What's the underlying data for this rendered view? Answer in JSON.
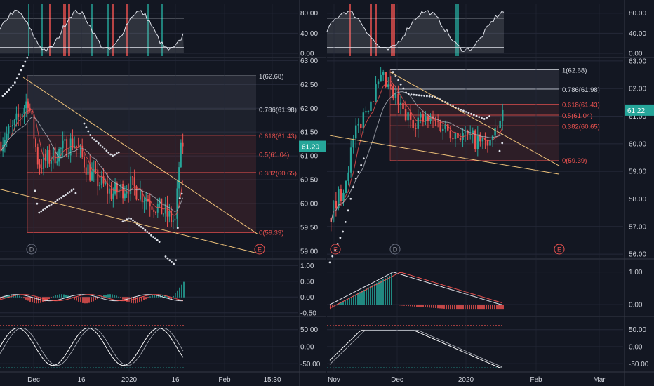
{
  "colors": {
    "background": "#131722",
    "grid": "#242838",
    "text": "#d1d4dc",
    "up": "#26a69a",
    "down": "#ef5350",
    "fib_neutral": "#d1d4dc",
    "fib_red": "#ef5350",
    "trendline": "#f0c37a",
    "price_badge": "#26a69a",
    "marker": "#ef5350",
    "marker_d": "#4a5060"
  },
  "chart_data": [
    {
      "type": "candlestick",
      "panel": "left",
      "price_axis": {
        "ticks": [
          "63.00",
          "62.50",
          "62.00",
          "61.50",
          "61.00",
          "60.50",
          "60.00",
          "59.50",
          "59.00"
        ],
        "ylim": [
          58.85,
          63.05
        ]
      },
      "time_axis": [
        "Dec",
        "16",
        "2020",
        "16",
        "Feb",
        "15:30"
      ],
      "last_price": "61.20",
      "fib_levels": [
        {
          "label": "1(62.68)",
          "value": 62.68,
          "color": "neutral"
        },
        {
          "label": "0.786(61.98)",
          "value": 61.98,
          "color": "neutral"
        },
        {
          "label": "0.618(61.43)",
          "value": 61.43,
          "color": "red"
        },
        {
          "label": "0.5(61.04)",
          "value": 61.04,
          "color": "red"
        },
        {
          "label": "0.382(60.65)",
          "value": 60.65,
          "color": "red"
        },
        {
          "label": "0(59.39)",
          "value": 59.39,
          "color": "red"
        }
      ],
      "markers": [
        "D",
        "E"
      ],
      "indicators": {
        "top_oscillator_ticks": [
          "80.00",
          "40.00",
          "0.00"
        ],
        "macd_ticks": [
          "1.00",
          "0.50",
          "0.00",
          "-0.50"
        ],
        "stoch_ticks": [
          "50.00",
          "0.00",
          "-50.00"
        ]
      }
    },
    {
      "type": "candlestick",
      "panel": "right",
      "price_axis": {
        "ticks": [
          "63.00",
          "62.00",
          "61.00",
          "60.00",
          "59.00",
          "58.00",
          "57.00",
          "56.00"
        ],
        "ylim": [
          55.85,
          63.1
        ]
      },
      "time_axis": [
        "Nov",
        "Dec",
        "2020",
        "Feb",
        "Mar"
      ],
      "last_price": "61.22",
      "fib_levels": [
        {
          "label": "1(62.68)",
          "value": 62.68,
          "color": "neutral"
        },
        {
          "label": "0.786(61.98)",
          "value": 61.98,
          "color": "neutral"
        },
        {
          "label": "0.618(61.43)",
          "value": 61.43,
          "color": "red"
        },
        {
          "label": "0.5(61.04)",
          "value": 61.04,
          "color": "red"
        },
        {
          "label": "0.382(60.65)",
          "value": 60.65,
          "color": "red"
        },
        {
          "label": "0(59.39)",
          "value": 59.39,
          "color": "red"
        }
      ],
      "markers": [
        "E",
        "D",
        "E"
      ],
      "indicators": {
        "top_oscillator_ticks": [
          "80.00",
          "40.00",
          "0.00"
        ],
        "macd_ticks": [
          "1.00",
          "0.00"
        ],
        "stoch_ticks": [
          "50.00",
          "0.00",
          "-50.00"
        ]
      }
    }
  ]
}
